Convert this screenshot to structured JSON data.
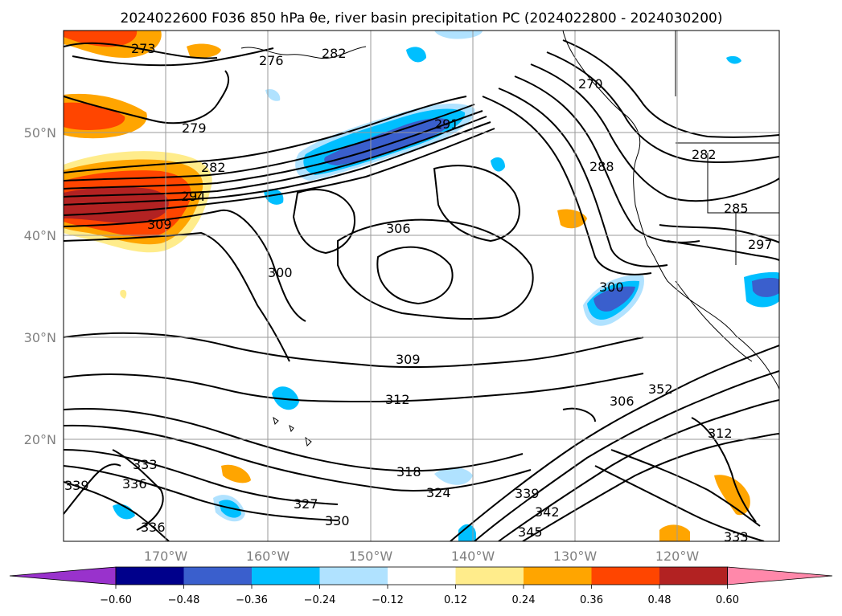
{
  "chart_data": {
    "type": "contour-map",
    "title": "2024022600 F036 850 hPa θe, river basin precipitation PC (2024022800 - 2024030200)",
    "lat_ticks": [
      "50°N",
      "40°N",
      "30°N",
      "20°N"
    ],
    "lon_ticks": [
      "170°W",
      "160°W",
      "150°W",
      "140°W",
      "130°W",
      "120°W"
    ],
    "lat_values": [
      50,
      40,
      30,
      20
    ],
    "lon_values": [
      -170,
      -160,
      -150,
      -140,
      -130,
      -120
    ],
    "lon_range": [
      -180,
      -110
    ],
    "lat_range": [
      10,
      60
    ],
    "grid": true,
    "colorbar": {
      "orientation": "horizontal",
      "extend": "both",
      "ticks": [
        "−0.60",
        "−0.48",
        "−0.36",
        "−0.24",
        "−0.12",
        "0.12",
        "0.24",
        "0.36",
        "0.48",
        "0.60"
      ],
      "colors": [
        "#9932cc",
        "#00008b",
        "#3a5fcd",
        "#00bfff",
        "#b0e2ff",
        "#ffffff",
        "#ffec8b",
        "#ffa500",
        "#ff4500",
        "#b22222",
        "#ff88aa"
      ]
    },
    "contour_labels": [
      "273",
      "276",
      "279",
      "282",
      "285",
      "288",
      "291",
      "294",
      "297",
      "300",
      "306",
      "309",
      "312",
      "318",
      "324",
      "327",
      "330",
      "333",
      "336",
      "339",
      "342",
      "345",
      "352",
      "270",
      "276"
    ],
    "filled_regions": [
      {
        "name": "positive-pc-dateline-40N",
        "color_level": "#b22222"
      },
      {
        "name": "negative-pc-gulf-of-alaska",
        "color_level": "#3a5fcd"
      },
      {
        "name": "negative-pc-california-offshore",
        "color_level": "#3a5fcd"
      }
    ]
  }
}
